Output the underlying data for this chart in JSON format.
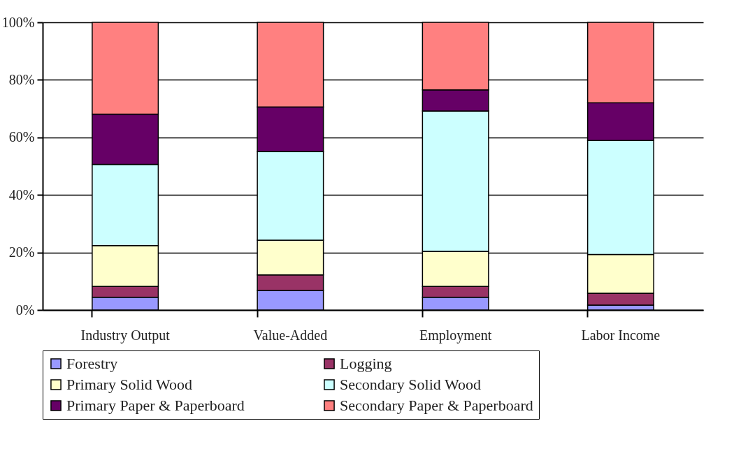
{
  "chart_data": {
    "type": "bar",
    "stacked": true,
    "categories": [
      "Industry Output",
      "Value-Added",
      "Employment",
      "Labor Income"
    ],
    "series": [
      {
        "name": "Forestry",
        "color": "#9999ff",
        "values": [
          4.4,
          6.8,
          4.4,
          1.7
        ]
      },
      {
        "name": "Logging",
        "color": "#993366",
        "values": [
          3.8,
          5.4,
          3.8,
          4.1
        ]
      },
      {
        "name": "Primary Solid Wood",
        "color": "#ffffcc",
        "values": [
          14.2,
          12.1,
          12.2,
          13.5
        ]
      },
      {
        "name": "Secondary Solid Wood",
        "color": "#ccffff",
        "values": [
          28.2,
          30.8,
          48.8,
          39.6
        ]
      },
      {
        "name": "Primary Paper & Paperboard",
        "color": "#660066",
        "values": [
          17.5,
          15.5,
          7.3,
          13.1
        ]
      },
      {
        "name": "Secondary Paper & Paperboard",
        "color": "#ff8080",
        "values": [
          31.9,
          29.4,
          23.5,
          28.0
        ]
      }
    ],
    "ylim": [
      0,
      100
    ],
    "yticks": [
      {
        "value": 0,
        "label": "0%"
      },
      {
        "value": 20,
        "label": "20%"
      },
      {
        "value": 40,
        "label": "40%"
      },
      {
        "value": 60,
        "label": "60%"
      },
      {
        "value": 80,
        "label": "80%"
      },
      {
        "value": 100,
        "label": "100%"
      }
    ],
    "grid": "y",
    "legend": "bottom"
  }
}
